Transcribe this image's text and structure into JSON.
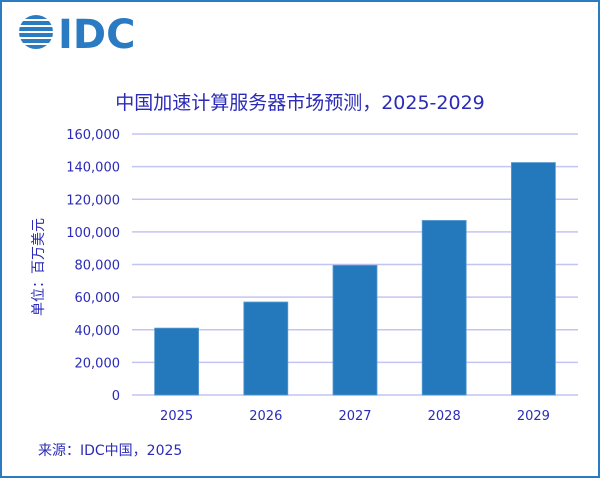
{
  "logo_text": "IDC",
  "source": "来源：IDC中国，2025",
  "colors": {
    "bar": "#2379bb",
    "grid": "#c4c4f2",
    "text": "#2b2bb8",
    "logo": "#2a7bc2"
  },
  "chart_data": {
    "type": "bar",
    "title": "中国加速计算服务器市场预测，2025-2029",
    "ylabel": "单位：百万美元",
    "xlabel": "",
    "categories": [
      "2025",
      "2026",
      "2027",
      "2028",
      "2029"
    ],
    "values": [
      41000,
      57000,
      79500,
      107000,
      142500
    ],
    "ylim": [
      0,
      160000
    ],
    "yticks": [
      0,
      20000,
      40000,
      60000,
      80000,
      100000,
      120000,
      140000,
      160000
    ],
    "ytick_labels": [
      "0",
      "20,000",
      "40,000",
      "60,000",
      "80,000",
      "100,000",
      "120,000",
      "140,000",
      "160,000"
    ],
    "grid": true,
    "legend": "none"
  }
}
